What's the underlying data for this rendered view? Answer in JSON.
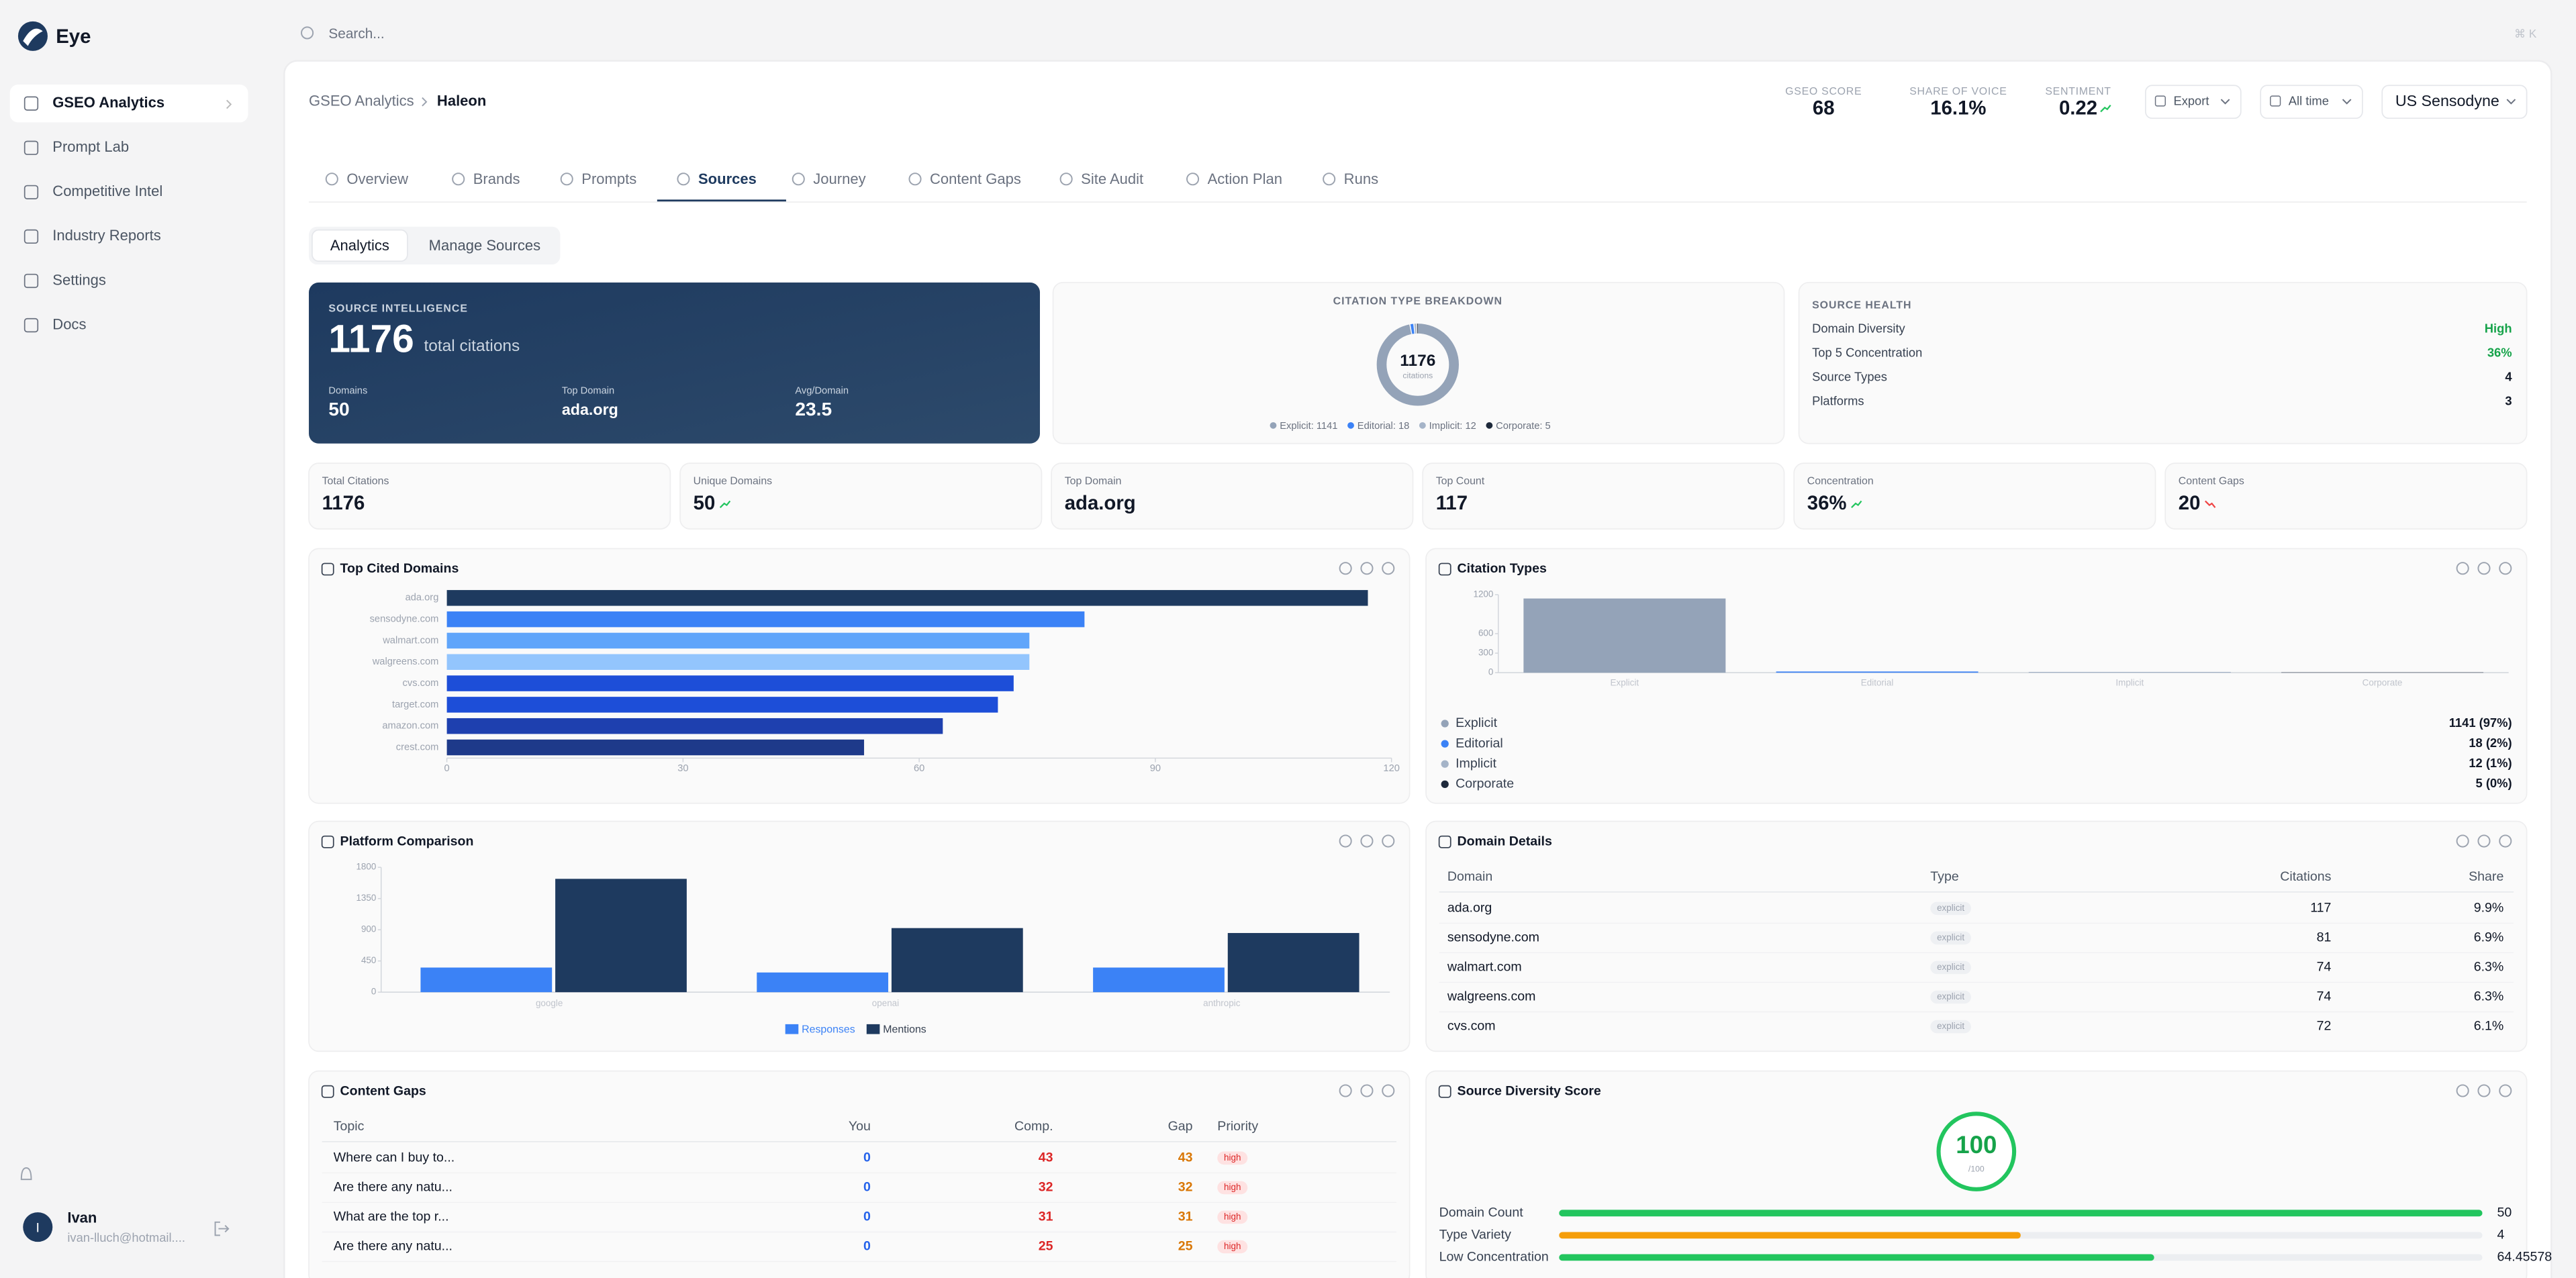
{
  "sidebar": {
    "brand": "Eye",
    "nav": [
      "GSEO Analytics",
      "Prompt Lab",
      "Competitive Intel",
      "Industry Reports",
      "Settings",
      "Docs"
    ],
    "active": 0,
    "user": {
      "initial": "I",
      "name": "Ivan",
      "email": "ivan-lluch@hotmail...."
    }
  },
  "search": {
    "placeholder": "Search...",
    "shortcut": "⌘ K"
  },
  "header": {
    "breadcrumb": [
      "GSEO Analytics",
      "Haleon"
    ],
    "metrics": [
      {
        "label": "GSEO SCORE",
        "value": "68"
      },
      {
        "label": "SHARE OF VOICE",
        "value": "16.1%"
      },
      {
        "label": "SENTIMENT",
        "value": "0.22",
        "trend": "up"
      }
    ],
    "buttons": [
      "Export",
      "All time",
      "US Sensodyne"
    ]
  },
  "tabs": {
    "items": [
      "Overview",
      "Brands",
      "Prompts",
      "Sources",
      "Journey",
      "Content Gaps",
      "Site Audit",
      "Action Plan",
      "Runs"
    ],
    "active": 3
  },
  "subtabs": {
    "items": [
      "Analytics",
      "Manage Sources"
    ],
    "active": 0
  },
  "source_intelligence": {
    "title": "SOURCE INTELLIGENCE",
    "total": 1176,
    "total_label": "total citations",
    "stats": [
      {
        "label": "Domains",
        "value": "50"
      },
      {
        "label": "Top Domain",
        "value": "ada.org"
      },
      {
        "label": "Avg/Domain",
        "value": "23.5"
      }
    ]
  },
  "citation_breakdown": {
    "type": "donut",
    "title": "CITATION TYPE BREAKDOWN",
    "center_value": 1176,
    "center_label": "citations",
    "slices": [
      {
        "name": "Explicit: 1141",
        "value": 1141,
        "color": "#94a3b8"
      },
      {
        "name": "Editorial: 18",
        "value": 18,
        "color": "#3b82f6"
      },
      {
        "name": "Implicit: 12",
        "value": 12,
        "color": "#a5b4c8"
      },
      {
        "name": "Corporate: 5",
        "value": 5,
        "color": "#1e293b"
      }
    ]
  },
  "source_health": {
    "title": "SOURCE HEALTH",
    "rows": [
      {
        "label": "Domain Diversity",
        "value": "High",
        "color": "#16a34a"
      },
      {
        "label": "Top 5 Concentration",
        "value": "36%",
        "color": "#16a34a"
      },
      {
        "label": "Source Types",
        "value": "4",
        "color": "#111827"
      },
      {
        "label": "Platforms",
        "value": "3",
        "color": "#111827"
      }
    ]
  },
  "kpis": [
    {
      "label": "Total Citations",
      "value": "1176"
    },
    {
      "label": "Unique Domains",
      "value": "50",
      "trend": "up"
    },
    {
      "label": "Top Domain",
      "value": "ada.org"
    },
    {
      "label": "Top Count",
      "value": "117"
    },
    {
      "label": "Concentration",
      "value": "36%",
      "trend": "up"
    },
    {
      "label": "Content Gaps",
      "value": "20",
      "trend": "down"
    }
  ],
  "top_domains": {
    "type": "hbar",
    "title": "Top Cited Domains",
    "categories": [
      "ada.org",
      "sensodyne.com",
      "walmart.com",
      "walgreens.com",
      "cvs.com",
      "target.com",
      "amazon.com",
      "crest.com"
    ],
    "values": [
      117,
      81,
      74,
      74,
      72,
      70,
      63,
      53
    ],
    "colors": [
      "#1e3a5f",
      "#3b82f6",
      "#60a5fa",
      "#93c5fd",
      "#1d4ed8",
      "#1d4ed8",
      "#1e40af",
      "#1e3a8a"
    ],
    "xlim": [
      0,
      120
    ],
    "xticks": [
      0,
      30,
      60,
      90,
      120
    ]
  },
  "citation_types": {
    "type": "bar",
    "title": "Citation Types",
    "categories": [
      "Explicit",
      "Editorial",
      "Implicit",
      "Corporate"
    ],
    "values": [
      1141,
      18,
      12,
      5
    ],
    "colors": [
      "#94a3b8",
      "#3b82f6",
      "#a5b4c8",
      "#1e293b"
    ],
    "ylim": [
      0,
      1200
    ],
    "yticks": [
      0,
      300,
      600,
      1200
    ],
    "legend": [
      {
        "name": "Explicit",
        "label": "1141 (97%)"
      },
      {
        "name": "Editorial",
        "label": "18 (2%)"
      },
      {
        "name": "Implicit",
        "label": "12 (1%)"
      },
      {
        "name": "Corporate",
        "label": "5 (0%)"
      }
    ]
  },
  "platform_comparison": {
    "type": "grouped_bar",
    "title": "Platform Comparison",
    "categories": [
      "google",
      "openai",
      "anthropic"
    ],
    "series": [
      {
        "name": "Responses",
        "color": "#3b82f6",
        "values": [
          355,
          284,
          355
        ]
      },
      {
        "name": "Mentions",
        "color": "#1e3a5f",
        "values": [
          1634,
          924,
          853
        ]
      }
    ],
    "ylim": [
      0,
      1800
    ],
    "yticks": [
      0,
      450,
      900,
      1350,
      1800
    ]
  },
  "domain_details": {
    "title": "Domain Details",
    "columns": [
      "Domain",
      "Type",
      "Citations",
      "Share"
    ],
    "rows": [
      [
        "ada.org",
        "explicit",
        "117",
        "9.9%"
      ],
      [
        "sensodyne.com",
        "explicit",
        "81",
        "6.9%"
      ],
      [
        "walmart.com",
        "explicit",
        "74",
        "6.3%"
      ],
      [
        "walgreens.com",
        "explicit",
        "74",
        "6.3%"
      ],
      [
        "cvs.com",
        "explicit",
        "72",
        "6.1%"
      ]
    ]
  },
  "content_gaps": {
    "title": "Content Gaps",
    "columns": [
      "Topic",
      "You",
      "Comp.",
      "Gap",
      "Priority"
    ],
    "rows": [
      [
        "Where can I buy to...",
        "0",
        "43",
        "43",
        "high"
      ],
      [
        "Are there any natu...",
        "0",
        "32",
        "32",
        "high"
      ],
      [
        "What are the top r...",
        "0",
        "31",
        "31",
        "high"
      ],
      [
        "Are there any natu...",
        "0",
        "25",
        "25",
        "high"
      ]
    ]
  },
  "diversity": {
    "title": "Source Diversity Score",
    "score": "100",
    "max_label": "/100",
    "rows": [
      {
        "label": "Domain Count",
        "value": 50,
        "xlim": [
          0,
          50
        ],
        "color": "#22c55e"
      },
      {
        "label": "Type Variety",
        "value": 4,
        "xlim": [
          0,
          8
        ],
        "color": "#f59e0b"
      },
      {
        "label": "Low Concentration",
        "value": 64.45578,
        "xlim": [
          0,
          100
        ],
        "color": "#22c55e"
      }
    ]
  }
}
